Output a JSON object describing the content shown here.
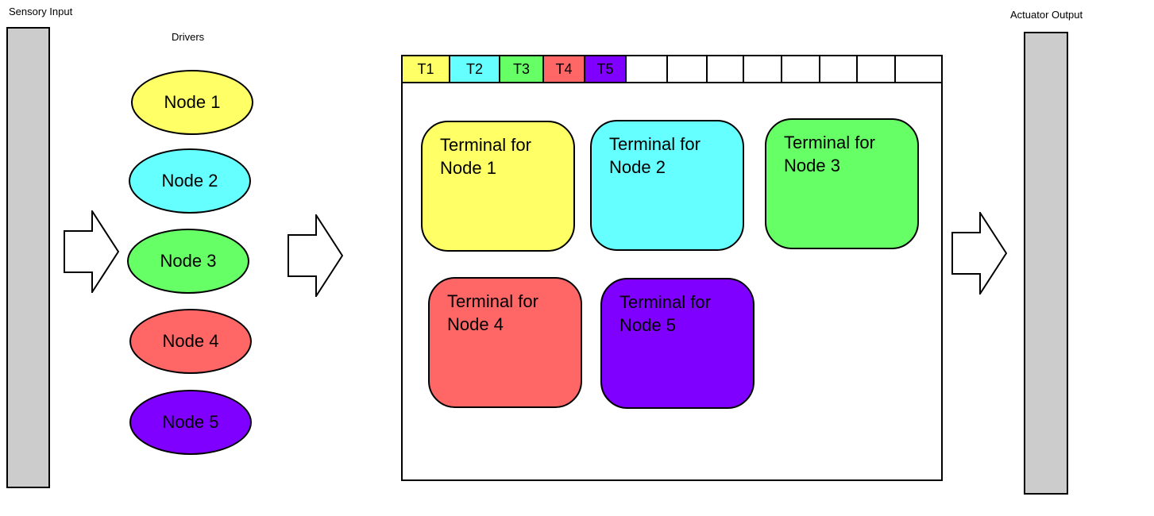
{
  "sensory_input": {
    "label": "Sensory Input"
  },
  "actuator_output": {
    "label": "Actuator Output"
  },
  "drivers": {
    "label": "Drivers",
    "nodes": [
      {
        "label": "Node 1",
        "color": "#ffff66"
      },
      {
        "label": "Node 2",
        "color": "#66ffff"
      },
      {
        "label": "Node 3",
        "color": "#66ff66"
      },
      {
        "label": "Node 4",
        "color": "#ff6666"
      },
      {
        "label": "Node 5",
        "color": "#8000ff"
      }
    ]
  },
  "terminal_window": {
    "tabs": [
      {
        "label": "T1",
        "color": "#ffff66"
      },
      {
        "label": "T2",
        "color": "#66ffff"
      },
      {
        "label": "T3",
        "color": "#66ff66"
      },
      {
        "label": "T4",
        "color": "#ff6666"
      },
      {
        "label": "T5",
        "color": "#8000ff"
      },
      {
        "label": "",
        "color": "#ffffff"
      },
      {
        "label": "",
        "color": "#ffffff"
      },
      {
        "label": "",
        "color": "#ffffff"
      },
      {
        "label": "",
        "color": "#ffffff"
      },
      {
        "label": "",
        "color": "#ffffff"
      },
      {
        "label": "",
        "color": "#ffffff"
      },
      {
        "label": "",
        "color": "#ffffff"
      },
      {
        "label": "",
        "color": "#ffffff"
      }
    ],
    "terminals": [
      {
        "line1": "Terminal for",
        "line2": "Node 1",
        "color": "#ffff66"
      },
      {
        "line1": "Terminal for",
        "line2": "Node 2",
        "color": "#66ffff"
      },
      {
        "line1": "Terminal for",
        "line2": "Node 3",
        "color": "#66ff66"
      },
      {
        "line1": "Terminal for",
        "line2": "Node 4",
        "color": "#ff6666"
      },
      {
        "line1": "Terminal for",
        "line2": "Node 5",
        "color": "#8000ff"
      }
    ]
  },
  "arrow_icon": "right-block-arrow-icon"
}
